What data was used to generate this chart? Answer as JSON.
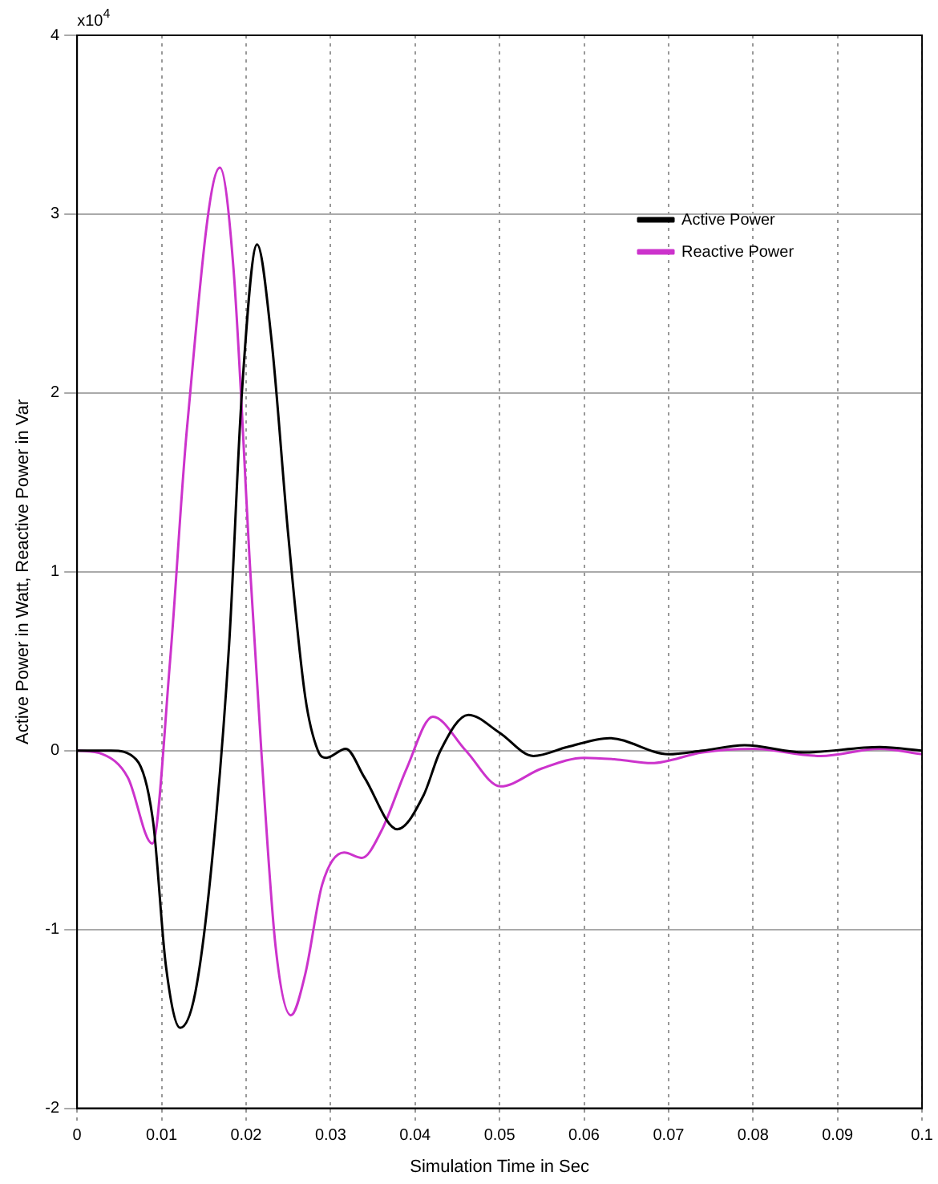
{
  "chart_data": {
    "type": "line",
    "xlabel": "Simulation Time in Sec",
    "ylabel": "Active Power in Watt, Reactive Power in Var",
    "annotations": [
      "x10$^{4}$"
    ],
    "xlim": [
      0,
      0.1
    ],
    "xticks": [
      0,
      0.01,
      0.02,
      0.03,
      0.04,
      0.05,
      0.06,
      0.07,
      0.08,
      0.09,
      0.1
    ],
    "ylim": [
      -2,
      4
    ],
    "yticks": [
      -2,
      -1,
      0,
      1,
      2,
      3,
      4
    ],
    "grid": true,
    "legend": "top right",
    "marker": "none",
    "line_style": "solid",
    "series": [
      {
        "name": "Active Power",
        "color": "#000000",
        "x": [
          0,
          0.004,
          0.007,
          0.009,
          0.0105,
          0.0122,
          0.014,
          0.016,
          0.018,
          0.0195,
          0.0213,
          0.023,
          0.025,
          0.027,
          0.0285,
          0.0295,
          0.0318,
          0.034,
          0.0379,
          0.041,
          0.043,
          0.0463,
          0.05,
          0.054,
          0.058,
          0.063,
          0.07,
          0.074,
          0.079,
          0.086,
          0.095,
          0.1
        ],
        "values": [
          0,
          0,
          -0.05,
          -0.4,
          -1.2,
          -1.55,
          -1.35,
          -0.6,
          0.6,
          2.0,
          2.83,
          2.3,
          1.2,
          0.3,
          0,
          -0.04,
          0.01,
          -0.15,
          -0.44,
          -0.25,
          0,
          0.2,
          0.1,
          -0.03,
          0.02,
          0.07,
          -0.02,
          0,
          0.03,
          -0.01,
          0.02,
          0
        ]
      },
      {
        "name": "Reactive Power",
        "color": "#cc33cc",
        "x": [
          0,
          0.003,
          0.006,
          0.0089,
          0.011,
          0.013,
          0.0169,
          0.0185,
          0.0205,
          0.0218,
          0.0235,
          0.0253,
          0.027,
          0.029,
          0.0316,
          0.0337,
          0.036,
          0.039,
          0.0421,
          0.046,
          0.0501,
          0.055,
          0.06,
          0.064,
          0.068,
          0.074,
          0.08,
          0.088,
          0.095,
          0.1
        ],
        "values": [
          0,
          -0.02,
          -0.15,
          -0.52,
          0.5,
          1.8,
          3.26,
          2.7,
          1.0,
          0,
          -1.1,
          -1.48,
          -1.25,
          -0.75,
          -0.57,
          -0.6,
          -0.45,
          -0.1,
          0.19,
          0,
          -0.2,
          -0.1,
          -0.04,
          -0.05,
          -0.07,
          -0.01,
          0.01,
          -0.03,
          0.01,
          -0.02
        ]
      }
    ]
  }
}
